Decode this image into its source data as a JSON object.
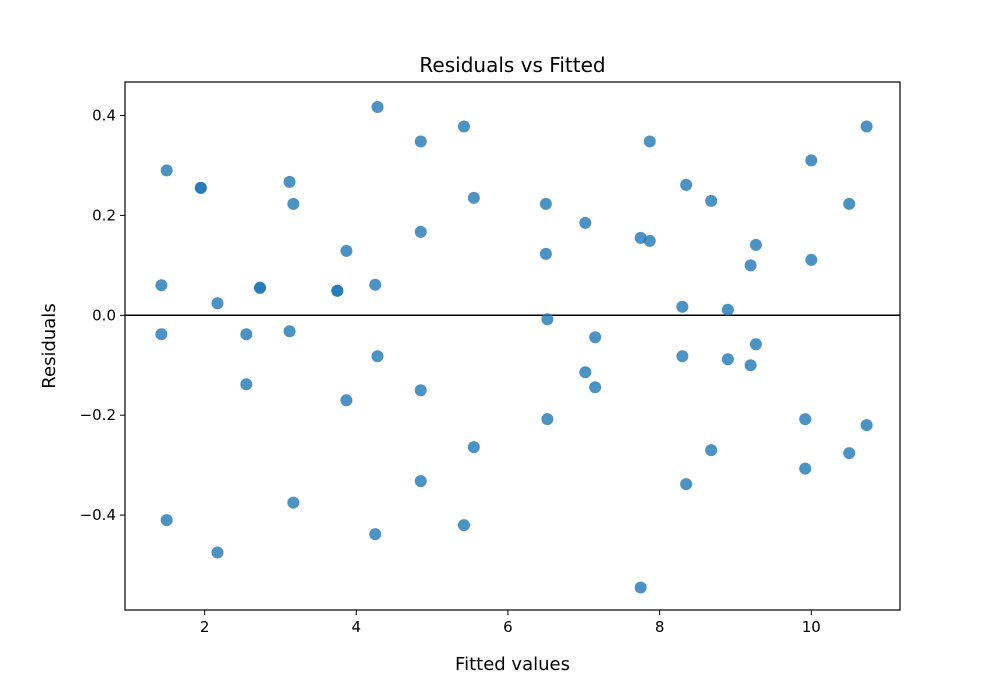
{
  "chart_data": {
    "type": "scatter",
    "title": "Residuals vs Fitted",
    "xlabel": "Fitted values",
    "ylabel": "Residuals",
    "xlim": [
      0.95,
      11.17
    ],
    "ylim": [
      -0.59,
      0.467
    ],
    "xticks": [
      2,
      4,
      6,
      8,
      10
    ],
    "yticks": [
      -0.4,
      -0.2,
      0.0,
      0.2,
      0.4
    ],
    "ytick_labels": [
      "−0.4",
      "−0.2",
      "0.0",
      "0.2",
      "0.4"
    ],
    "xtick_labels": [
      "2",
      "4",
      "6",
      "8",
      "10"
    ],
    "reference_line_y": 0,
    "grid": false,
    "point_color": "#1f77b4",
    "reference_line_color": "#000000",
    "series": [
      {
        "x": [
          1.43,
          1.43,
          1.5,
          1.5,
          1.95,
          1.95,
          2.17,
          2.17,
          2.55,
          2.55,
          2.73,
          2.73,
          3.12,
          3.12,
          3.17,
          3.17,
          3.75,
          3.75,
          3.87,
          3.87,
          4.25,
          4.25,
          4.28,
          4.28,
          4.85,
          4.85,
          4.85,
          4.85,
          5.42,
          5.42,
          5.55,
          5.55,
          6.5,
          6.5,
          6.52,
          6.52,
          7.02,
          7.02,
          7.15,
          7.15,
          7.75,
          7.75,
          7.87,
          7.87,
          8.3,
          8.3,
          8.35,
          8.35,
          8.68,
          8.68,
          8.9,
          8.9,
          9.2,
          9.2,
          9.27,
          9.27,
          9.92,
          9.92,
          10.0,
          10.0,
          10.5,
          10.5,
          10.73,
          10.73
        ],
        "y": [
          0.06,
          -0.038,
          0.29,
          -0.41,
          0.255,
          0.255,
          0.024,
          -0.475,
          -0.038,
          -0.138,
          0.055,
          0.055,
          0.267,
          -0.032,
          0.223,
          -0.375,
          0.049,
          0.049,
          0.129,
          -0.17,
          0.061,
          -0.438,
          0.417,
          -0.082,
          0.348,
          0.167,
          -0.15,
          -0.332,
          0.378,
          -0.42,
          0.235,
          -0.264,
          0.223,
          0.123,
          -0.008,
          -0.208,
          0.185,
          -0.114,
          -0.044,
          -0.144,
          0.155,
          -0.545,
          0.348,
          0.149,
          0.017,
          -0.082,
          0.261,
          -0.338,
          0.229,
          -0.27,
          0.011,
          -0.088,
          0.1,
          -0.1,
          0.141,
          -0.058,
          -0.208,
          -0.307,
          0.31,
          0.111,
          0.223,
          -0.276,
          0.378,
          -0.22
        ]
      }
    ]
  }
}
